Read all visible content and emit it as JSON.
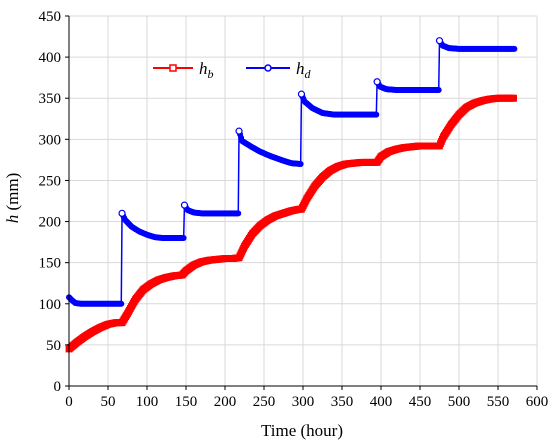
{
  "chart_data": {
    "type": "line",
    "title": "",
    "xlabel": "Time (hour)",
    "ylabel": {
      "var": "h",
      "unit": " (mm)"
    },
    "xlim": [
      0,
      600
    ],
    "ylim": [
      0,
      450
    ],
    "xticks": [
      0,
      50,
      100,
      150,
      200,
      250,
      300,
      350,
      400,
      450,
      500,
      550,
      600
    ],
    "yticks": [
      0,
      50,
      100,
      150,
      200,
      250,
      300,
      350,
      400,
      450
    ],
    "grid": true,
    "legend_position": "top-left (inside plot)",
    "series": [
      {
        "name": "hb",
        "name_main": "h",
        "name_sub": "b",
        "color": "#ff0000",
        "marker": "square",
        "points": [
          [
            0,
            45
          ],
          [
            10,
            53
          ],
          [
            20,
            60
          ],
          [
            30,
            66
          ],
          [
            40,
            71
          ],
          [
            50,
            75
          ],
          [
            60,
            77
          ],
          [
            68,
            77
          ],
          [
            75,
            88
          ],
          [
            85,
            105
          ],
          [
            95,
            117
          ],
          [
            105,
            124
          ],
          [
            115,
            129
          ],
          [
            125,
            132
          ],
          [
            135,
            134
          ],
          [
            145,
            135
          ],
          [
            150,
            140
          ],
          [
            160,
            147
          ],
          [
            170,
            151
          ],
          [
            180,
            153
          ],
          [
            190,
            154
          ],
          [
            200,
            155
          ],
          [
            210,
            155
          ],
          [
            218,
            156
          ],
          [
            225,
            170
          ],
          [
            235,
            185
          ],
          [
            245,
            195
          ],
          [
            255,
            202
          ],
          [
            265,
            207
          ],
          [
            275,
            210
          ],
          [
            285,
            213
          ],
          [
            295,
            215
          ],
          [
            298,
            215
          ],
          [
            305,
            228
          ],
          [
            315,
            243
          ],
          [
            325,
            254
          ],
          [
            335,
            262
          ],
          [
            345,
            267
          ],
          [
            355,
            270
          ],
          [
            365,
            271
          ],
          [
            375,
            272
          ],
          [
            385,
            272
          ],
          [
            395,
            272
          ],
          [
            400,
            279
          ],
          [
            410,
            285
          ],
          [
            420,
            288
          ],
          [
            430,
            290
          ],
          [
            440,
            291
          ],
          [
            450,
            292
          ],
          [
            460,
            292
          ],
          [
            470,
            292
          ],
          [
            475,
            292
          ],
          [
            480,
            303
          ],
          [
            490,
            318
          ],
          [
            500,
            330
          ],
          [
            510,
            339
          ],
          [
            520,
            344
          ],
          [
            530,
            347
          ],
          [
            540,
            349
          ],
          [
            550,
            350
          ],
          [
            560,
            350
          ],
          [
            570,
            350
          ]
        ]
      },
      {
        "name": "hd",
        "name_main": "h",
        "name_sub": "d",
        "color": "#0000ff",
        "marker": "circle",
        "points": [
          [
            0,
            108
          ],
          [
            3,
            105
          ],
          [
            8,
            101
          ],
          [
            15,
            100
          ],
          [
            30,
            100
          ],
          [
            50,
            100
          ],
          [
            67,
            100
          ],
          [
            68,
            210
          ],
          [
            72,
            202
          ],
          [
            80,
            194
          ],
          [
            90,
            188
          ],
          [
            100,
            184
          ],
          [
            110,
            181
          ],
          [
            120,
            180
          ],
          [
            130,
            180
          ],
          [
            140,
            180
          ],
          [
            147,
            180
          ],
          [
            148,
            220
          ],
          [
            152,
            214
          ],
          [
            160,
            211
          ],
          [
            170,
            210
          ],
          [
            190,
            210
          ],
          [
            210,
            210
          ],
          [
            217,
            210
          ],
          [
            218,
            310
          ],
          [
            222,
            298
          ],
          [
            232,
            292
          ],
          [
            245,
            285
          ],
          [
            260,
            279
          ],
          [
            275,
            274
          ],
          [
            285,
            271
          ],
          [
            297,
            270
          ],
          [
            298,
            355
          ],
          [
            302,
            346
          ],
          [
            312,
            338
          ],
          [
            325,
            332
          ],
          [
            340,
            330
          ],
          [
            360,
            330
          ],
          [
            380,
            330
          ],
          [
            394,
            330
          ],
          [
            395,
            370
          ],
          [
            399,
            364
          ],
          [
            407,
            361
          ],
          [
            420,
            360
          ],
          [
            440,
            360
          ],
          [
            460,
            360
          ],
          [
            474,
            360
          ],
          [
            475,
            420
          ],
          [
            479,
            414
          ],
          [
            487,
            411
          ],
          [
            500,
            410
          ],
          [
            520,
            410
          ],
          [
            545,
            410
          ],
          [
            571,
            410
          ]
        ]
      }
    ]
  }
}
